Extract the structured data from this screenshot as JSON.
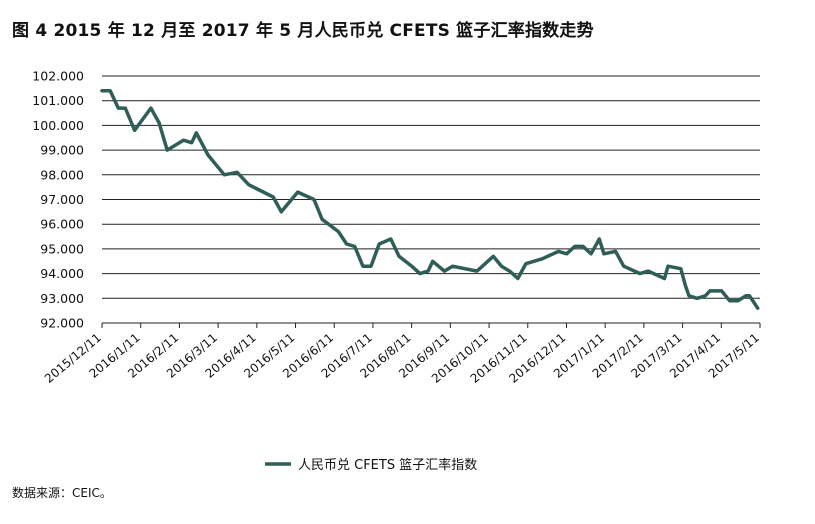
{
  "title": "图 4  2015 年 12 月至 2017 年 5 月人民币兑 CFETS 篮子汇率指数走势",
  "source": "数据来源：CEIC。",
  "colors": {
    "line": "#2f5d57",
    "grid": "#222222"
  },
  "chart_data": {
    "type": "line",
    "title": "图 4  2015 年 12 月至 2017 年 5 月人民币兑 CFETS 篮子汇率指数走势",
    "xlabel": "",
    "ylabel": "",
    "ylim": [
      92.0,
      102.0
    ],
    "yticks": [
      "92.000",
      "93.000",
      "94.000",
      "95.000",
      "96.000",
      "97.000",
      "98.000",
      "99.000",
      "100.000",
      "101.000",
      "102.000"
    ],
    "x_tick_labels": [
      "2015/12/11",
      "2016/1/11",
      "2016/2/11",
      "2016/3/11",
      "2016/4/11",
      "2016/5/11",
      "2016/6/11",
      "2016/7/11",
      "2016/8/11",
      "2016/9/11",
      "2016/10/11",
      "2016/11/11",
      "2016/12/11",
      "2017/1/11",
      "2017/2/11",
      "2017/3/11",
      "2017/4/11",
      "2017/5/11"
    ],
    "grid": "horizontal",
    "legend_position": "bottom",
    "series": [
      {
        "name": "人民币兑 CFETS 篮子汇率指数",
        "values": [
          [
            "2015-12-11",
            101.4
          ],
          [
            "2015-12-18",
            101.4
          ],
          [
            "2015-12-25",
            100.7
          ],
          [
            "2015-12-31",
            100.7
          ],
          [
            "2016-01-08",
            99.8
          ],
          [
            "2016-01-22",
            100.7
          ],
          [
            "2016-01-29",
            100.1
          ],
          [
            "2016-02-05",
            99.0
          ],
          [
            "2016-02-19",
            99.4
          ],
          [
            "2016-02-26",
            99.3
          ],
          [
            "2016-03-01",
            99.7
          ],
          [
            "2016-03-11",
            98.8
          ],
          [
            "2016-03-25",
            98.0
          ],
          [
            "2016-04-05",
            98.1
          ],
          [
            "2016-04-15",
            97.6
          ],
          [
            "2016-05-06",
            97.1
          ],
          [
            "2016-05-13",
            96.5
          ],
          [
            "2016-05-27",
            97.3
          ],
          [
            "2016-06-10",
            97.0
          ],
          [
            "2016-06-17",
            96.2
          ],
          [
            "2016-07-01",
            95.7
          ],
          [
            "2016-07-08",
            95.2
          ],
          [
            "2016-07-15",
            95.1
          ],
          [
            "2016-07-22",
            94.3
          ],
          [
            "2016-07-29",
            94.3
          ],
          [
            "2016-08-05",
            95.2
          ],
          [
            "2016-08-15",
            95.4
          ],
          [
            "2016-08-22",
            94.7
          ],
          [
            "2016-09-02",
            94.3
          ],
          [
            "2016-09-09",
            94.0
          ],
          [
            "2016-09-16",
            94.1
          ],
          [
            "2016-09-20",
            94.5
          ],
          [
            "2016-09-30",
            94.1
          ],
          [
            "2016-10-07",
            94.3
          ],
          [
            "2016-10-28",
            94.1
          ],
          [
            "2016-11-11",
            94.7
          ],
          [
            "2016-11-18",
            94.3
          ],
          [
            "2016-11-25",
            94.1
          ],
          [
            "2016-12-02",
            93.8
          ],
          [
            "2016-12-09",
            94.4
          ],
          [
            "2016-12-23",
            94.6
          ],
          [
            "2017-01-06",
            94.9
          ],
          [
            "2017-01-13",
            94.8
          ],
          [
            "2017-01-20",
            95.1
          ],
          [
            "2017-01-27",
            95.1
          ],
          [
            "2017-02-03",
            94.8
          ],
          [
            "2017-02-10",
            95.4
          ],
          [
            "2017-02-14",
            94.8
          ],
          [
            "2017-02-24",
            94.9
          ],
          [
            "2017-03-03",
            94.3
          ],
          [
            "2017-03-17",
            94.0
          ],
          [
            "2017-03-24",
            94.1
          ],
          [
            "2017-04-07",
            93.8
          ],
          [
            "2017-04-10",
            94.3
          ],
          [
            "2017-04-21",
            94.2
          ],
          [
            "2017-04-25",
            93.5
          ],
          [
            "2017-04-28",
            93.1
          ],
          [
            "2017-05-05",
            93.0
          ],
          [
            "2017-05-12",
            93.1
          ],
          [
            "2017-05-16",
            93.3
          ],
          [
            "2017-05-26",
            93.3
          ],
          [
            "2017-06-02",
            92.9
          ],
          [
            "2017-06-09",
            92.9
          ],
          [
            "2017-06-16",
            93.1
          ],
          [
            "2017-06-19",
            93.1
          ],
          [
            "2017-06-26",
            92.6
          ]
        ]
      }
    ]
  }
}
